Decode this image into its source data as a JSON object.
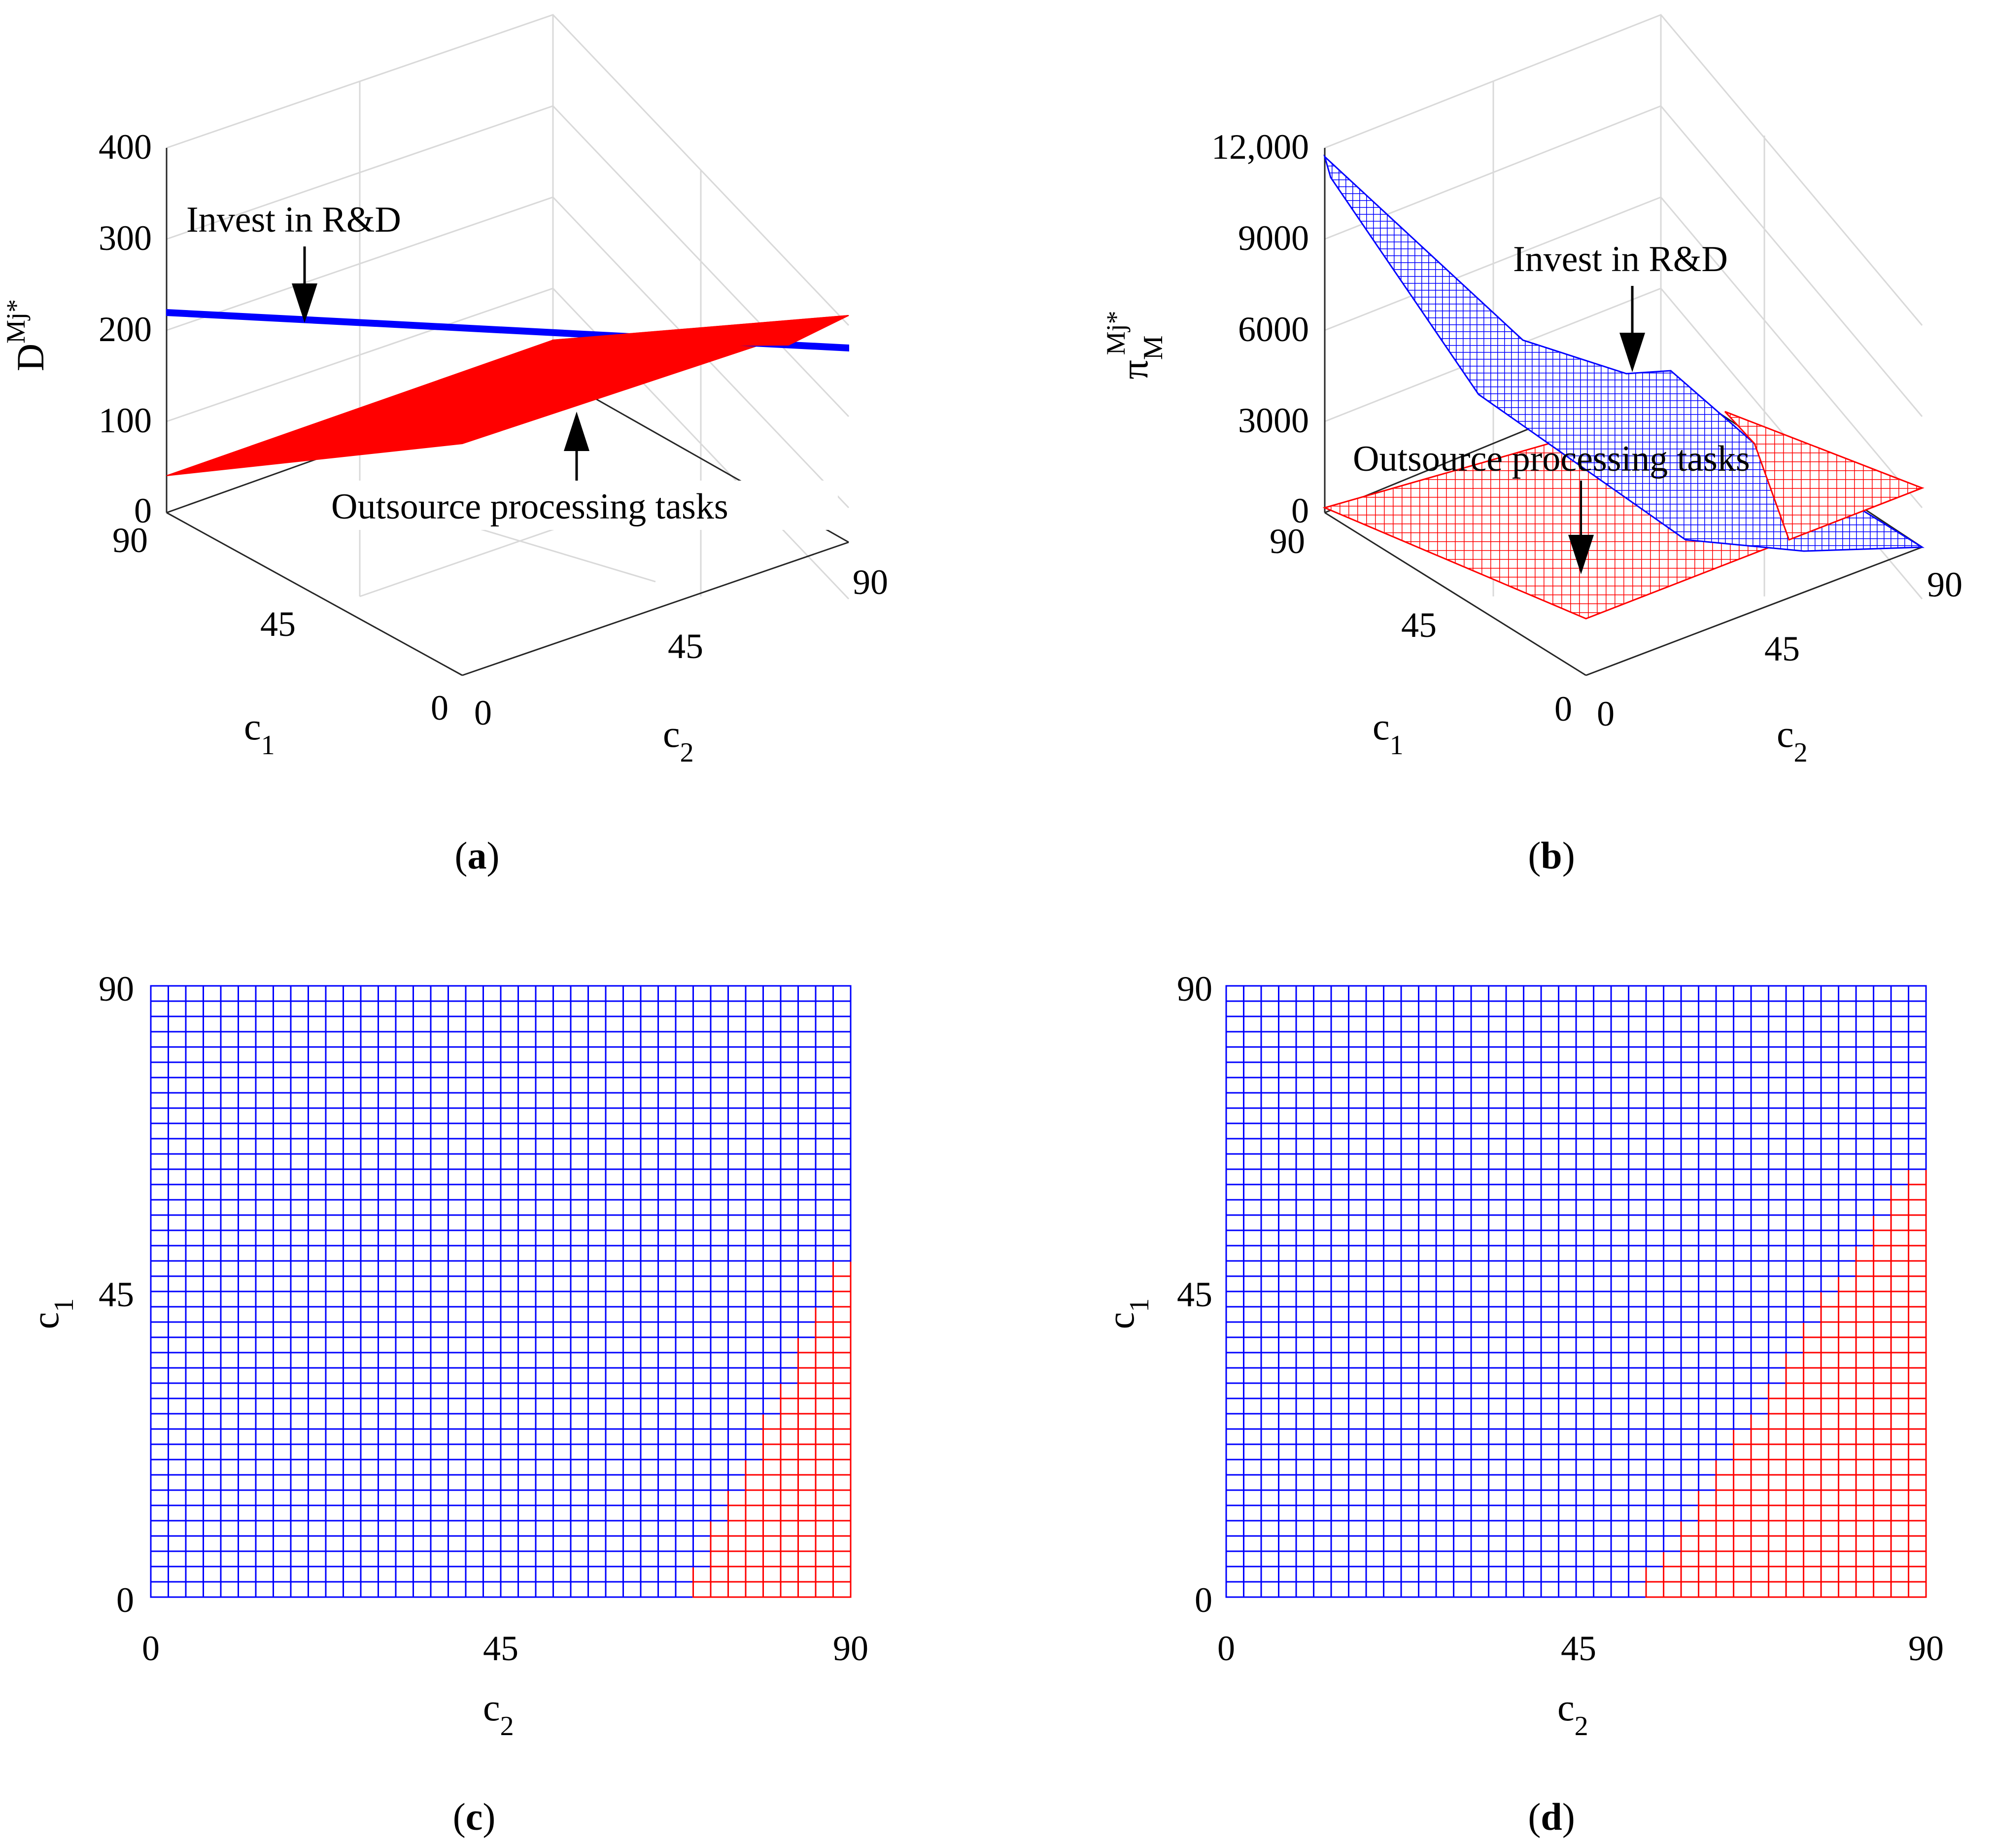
{
  "colors": {
    "invest": "#0000ff",
    "outsource": "#ff0000",
    "axis": "#262626",
    "grid": "#d9d9d9"
  },
  "panel_a": {
    "caption_open": "(",
    "caption_letter": "a",
    "caption_close": ")",
    "zlabel_main": "D",
    "zlabel_sup": "Mj*",
    "xlabel_main": "c",
    "xlabel_sub": "1",
    "ylabel_main": "c",
    "ylabel_sub": "2",
    "z_ticks": [
      "0",
      "100",
      "200",
      "300",
      "400"
    ],
    "c1_ticks": [
      "0",
      "45",
      "90"
    ],
    "c2_ticks": [
      "0",
      "45",
      "90"
    ],
    "annotation_invest": "Invest in R&D",
    "annotation_outsource": "Outsource processing tasks"
  },
  "panel_b": {
    "caption_open": "(",
    "caption_letter": "b",
    "caption_close": ")",
    "zlabel_main": "π",
    "zlabel_sub": "M",
    "zlabel_sup": "Mj*",
    "xlabel_main": "c",
    "xlabel_sub": "1",
    "ylabel_main": "c",
    "ylabel_sub": "2",
    "z_ticks": [
      "0",
      "3000",
      "6000",
      "9000",
      "12,000"
    ],
    "c1_ticks": [
      "0",
      "45",
      "90"
    ],
    "c2_ticks": [
      "0",
      "45",
      "90"
    ],
    "annotation_invest": "Invest in R&D",
    "annotation_outsource": "Outsource processing tasks"
  },
  "panel_c": {
    "caption_open": "(",
    "caption_letter": "c",
    "caption_close": ")",
    "xlabel_main": "c",
    "xlabel_sub": "2",
    "ylabel_main": "c",
    "ylabel_sub": "1",
    "x_ticks": [
      "0",
      "45",
      "90"
    ],
    "y_ticks": [
      "0",
      "45",
      "90"
    ]
  },
  "panel_d": {
    "caption_open": "(",
    "caption_letter": "d",
    "caption_close": ")",
    "xlabel_main": "c",
    "xlabel_sub": "2",
    "ylabel_main": "c",
    "ylabel_sub": "1",
    "x_ticks": [
      "0",
      "45",
      "90"
    ],
    "y_ticks": [
      "0",
      "45",
      "90"
    ]
  },
  "chart_data": [
    {
      "type": "surface",
      "panel": "a",
      "x_variable": "c1",
      "y_variable": "c2",
      "xlim": [
        0,
        90
      ],
      "ylim": [
        0,
        90
      ],
      "zlim": [
        0,
        400
      ],
      "series": [
        {
          "name": "Invest in R&D",
          "color": "#0000ff",
          "corners": {
            "c1_0_c2_0": 200,
            "c1_90_c2_0": 222,
            "c1_0_c2_90": 155,
            "c1_90_c2_90": 177
          }
        },
        {
          "name": "Outsource processing tasks",
          "color": "#ff0000",
          "corners": {
            "c1_0_c2_0": 90,
            "c1_90_c2_0": 40,
            "c1_0_c2_90": 250,
            "c1_90_c2_90": 200
          }
        }
      ]
    },
    {
      "type": "surface",
      "panel": "b",
      "x_variable": "c1",
      "y_variable": "c2",
      "xlim": [
        0,
        90
      ],
      "ylim": [
        0,
        90
      ],
      "zlim": [
        0,
        12000
      ],
      "series": [
        {
          "name": "Invest in R&D",
          "color": "#0000ff",
          "corners": {
            "c1_0_c2_0": 3800,
            "c1_90_c2_0": 11600,
            "c1_0_c2_90": 0,
            "c1_90_c2_90": 3300
          }
        },
        {
          "name": "Outsource processing tasks",
          "color": "#ff0000",
          "corners": {
            "c1_0_c2_0": 0,
            "c1_90_c2_0": 0,
            "c1_0_c2_90": 1500,
            "c1_90_c2_90": 1500
          }
        }
      ]
    },
    {
      "type": "heatmap",
      "panel": "c",
      "x_variable": "c2",
      "y_variable": "c1",
      "xlim": [
        0,
        90
      ],
      "ylim": [
        0,
        90
      ],
      "grid_steps": 40,
      "regions": [
        {
          "name": "Invest in R&D",
          "color": "#0000ff"
        },
        {
          "name": "Outsource processing tasks",
          "color": "#ff0000"
        }
      ],
      "boundary": {
        "c2_at_c1_0": 69,
        "c1_at_c2_90": 52
      }
    },
    {
      "type": "heatmap",
      "panel": "d",
      "x_variable": "c2",
      "y_variable": "c1",
      "xlim": [
        0,
        90
      ],
      "ylim": [
        0,
        90
      ],
      "grid_steps": 40,
      "regions": [
        {
          "name": "Invest in R&D",
          "color": "#0000ff"
        },
        {
          "name": "Outsource processing tasks",
          "color": "#ff0000"
        }
      ],
      "boundary": {
        "c2_at_c1_0": 53,
        "c1_at_c2_90": 66
      }
    }
  ]
}
